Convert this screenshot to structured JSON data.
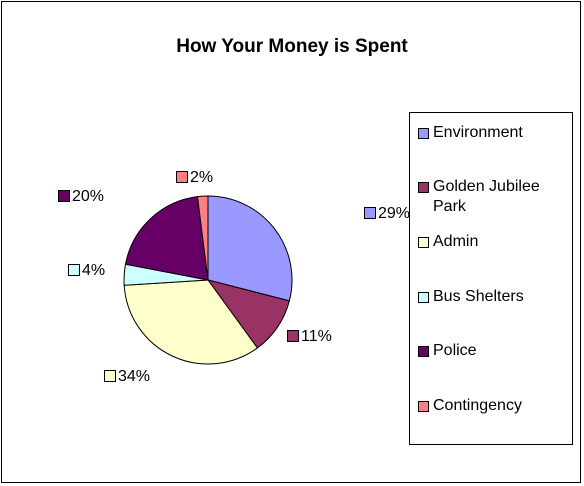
{
  "chart_data": {
    "type": "pie",
    "title": "How Your Money is Spent",
    "categories": [
      "Environment",
      "Golden Jubilee Park",
      "Admin",
      "Bus Shelters",
      "Police",
      "Contingency"
    ],
    "values": [
      29,
      11,
      34,
      4,
      20,
      2
    ],
    "data_labels": [
      "29%",
      "11%",
      "34%",
      "4%",
      "20%",
      "2%"
    ],
    "colors": [
      "#9999ff",
      "#993366",
      "#ffffcc",
      "#ccffff",
      "#660066",
      "#ff8080"
    ],
    "start_angle_deg": 0,
    "direction": "clockwise",
    "legend_position": "right"
  }
}
